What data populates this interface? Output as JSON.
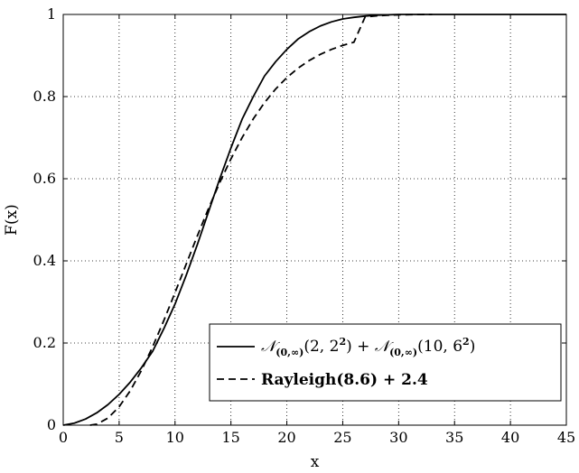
{
  "chart_data": {
    "type": "line",
    "xlabel": "x",
    "ylabel": "F(x)",
    "xlim": [
      0,
      45
    ],
    "ylim": [
      0,
      1
    ],
    "xticks": [
      "0",
      "5",
      "10",
      "15",
      "20",
      "25",
      "30",
      "35",
      "40",
      "45"
    ],
    "yticks": [
      "0",
      "0.2",
      "0.4",
      "0.6",
      "0.8",
      "1"
    ],
    "grid": true,
    "legend_position": "bottom-right",
    "series": [
      {
        "name": "N_(0,∞)(2, 2²) + N_(0,∞)(10, 6²)",
        "legend": {
          "main": "𝒩",
          "sub1": "(0,∞)",
          "arg1": "(2, 2",
          "sup1": "2",
          "mid": ") + ",
          "main2": "𝒩",
          "sub2": "(0,∞)",
          "arg2": "(10, 6",
          "sup2": "2",
          "end": ")"
        },
        "style": "solid",
        "x": [
          0,
          1,
          2,
          3,
          4,
          5,
          6,
          7,
          8,
          9,
          10,
          11,
          12,
          13,
          14,
          15,
          16,
          17,
          18,
          19,
          20,
          21,
          22,
          23,
          24,
          25,
          26,
          27,
          28,
          29,
          30,
          31,
          32,
          33
        ],
        "y": [
          0.0,
          0.005,
          0.015,
          0.03,
          0.05,
          0.075,
          0.105,
          0.14,
          0.18,
          0.235,
          0.295,
          0.365,
          0.44,
          0.52,
          0.6,
          0.675,
          0.745,
          0.8,
          0.85,
          0.885,
          0.915,
          0.94,
          0.958,
          0.972,
          0.982,
          0.989,
          0.993,
          0.996,
          0.998,
          0.999,
          1.0,
          1.0,
          1.0,
          1.0
        ]
      },
      {
        "name": "Rayleigh(8.6) + 2.4",
        "legend_text": "Rayleigh(8.6) + 2.4",
        "style": "dashed",
        "x": [
          2.4,
          3,
          4,
          5,
          6,
          7,
          8,
          9,
          10,
          11,
          12,
          13,
          14,
          15,
          16,
          17,
          18,
          19,
          20,
          21,
          22,
          23,
          24,
          25,
          26,
          27,
          28,
          29,
          30,
          31,
          32,
          33
        ],
        "y": [
          0.0,
          0.0024,
          0.0172,
          0.0447,
          0.084,
          0.1334,
          0.1911,
          0.2549,
          0.3227,
          0.3922,
          0.4612,
          0.5279,
          0.5907,
          0.6483,
          0.7002,
          0.7458,
          0.7852,
          0.8185,
          0.8463,
          0.8692,
          0.8878,
          0.9029,
          0.915,
          0.9247,
          0.9325,
          0.9938,
          0.9965,
          0.9981,
          0.999,
          0.9995,
          0.9998,
          1.0
        ]
      }
    ]
  }
}
